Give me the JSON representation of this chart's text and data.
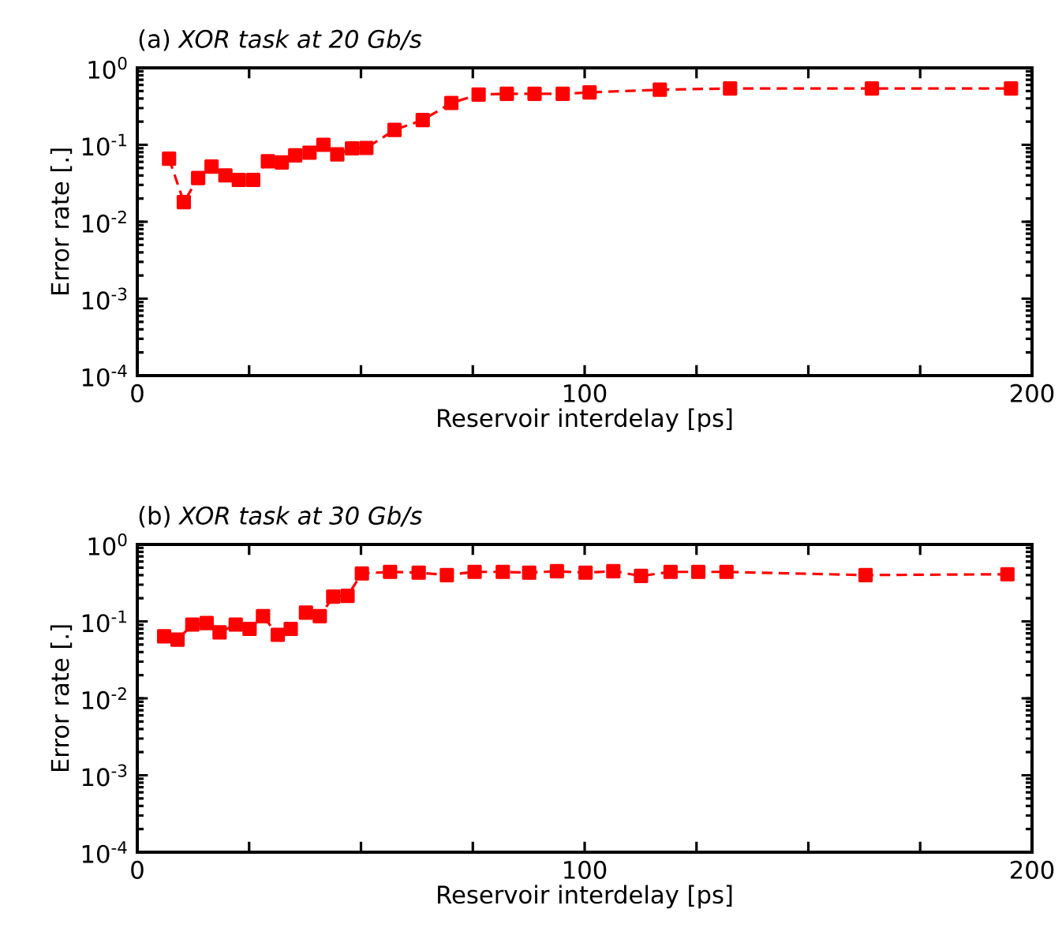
{
  "chart_data": [
    {
      "type": "line",
      "title": "(a) *XOR task at 20 Gb/s*",
      "xlabel": "Reservoir interdelay [ps]",
      "ylabel": "Error rate [.]",
      "log": "y",
      "marker": "square",
      "line_style": "dashed",
      "xlim": [
        0,
        200
      ],
      "ylim": [
        0.0001,
        1
      ],
      "xticks": [
        0,
        {
          "value": 25,
          "label": null
        },
        {
          "value": 50,
          "label": null
        },
        {
          "value": 75,
          "label": null
        },
        100,
        {
          "value": 125,
          "label": null
        },
        {
          "value": 150,
          "label": null
        },
        {
          "value": 175,
          "label": null
        },
        200
      ],
      "yticks": [
        {
          "value": 0.0001,
          "label": "10$^{-4}$"
        },
        {
          "value": 0.001,
          "label": "10$^{-3}$"
        },
        {
          "value": 0.01,
          "label": "10$^{-2}$"
        },
        {
          "value": 0.1,
          "label": "10$^{-1}$"
        },
        {
          "value": 1,
          "label": "10$^{0}$"
        }
      ],
      "series": [
        {
          "color": "#ff0000",
          "x": [
            7.1,
            10.4,
            13.6,
            16.6,
            19.7,
            22.7,
            25.9,
            29.2,
            32.3,
            35.3,
            38.5,
            41.6,
            44.7,
            48.0,
            51.2,
            57.5,
            63.8,
            70.2,
            76.3,
            82.6,
            88.8,
            95.1,
            101.1,
            116.8,
            132.5,
            164.2,
            195.3
          ],
          "values": [
            0.066,
            0.018,
            0.037,
            0.052,
            0.04,
            0.035,
            0.035,
            0.061,
            0.059,
            0.073,
            0.079,
            0.1,
            0.075,
            0.09,
            0.091,
            0.156,
            0.21,
            0.35,
            0.45,
            0.46,
            0.46,
            0.46,
            0.48,
            0.52,
            0.54,
            0.54,
            0.54
          ]
        }
      ]
    },
    {
      "type": "line",
      "title": "(b) *XOR task at 30 Gb/s*",
      "xlabel": "Reservoir interdelay [ps]",
      "ylabel": "Error rate [.]",
      "log": "y",
      "marker": "square",
      "line_style": "dashed",
      "xlim": [
        0,
        200
      ],
      "ylim": [
        0.0001,
        1
      ],
      "xticks": [
        0,
        {
          "value": 25,
          "label": null
        },
        {
          "value": 50,
          "label": null
        },
        {
          "value": 75,
          "label": null
        },
        100,
        {
          "value": 125,
          "label": null
        },
        {
          "value": 150,
          "label": null
        },
        {
          "value": 175,
          "label": null
        },
        200
      ],
      "yticks": [
        {
          "value": 0.0001,
          "label": "10$^{-4}$"
        },
        {
          "value": 0.001,
          "label": "10$^{-3}$"
        },
        {
          "value": 0.01,
          "label": "10$^{-2}$"
        },
        {
          "value": 0.1,
          "label": "10$^{-1}$"
        },
        {
          "value": 1,
          "label": "10$^{0}$"
        }
      ],
      "series": [
        {
          "color": "#ff0000",
          "x": [
            6.0,
            9.0,
            12.3,
            15.5,
            18.4,
            22.0,
            25.1,
            28.1,
            31.4,
            34.3,
            37.7,
            40.8,
            43.8,
            47.0,
            50.2,
            56.5,
            62.9,
            69.2,
            75.4,
            81.7,
            87.6,
            93.8,
            100.2,
            106.4,
            112.6,
            119.2,
            125.4,
            131.7,
            162.8,
            194.5
          ],
          "values": [
            0.064,
            0.058,
            0.091,
            0.095,
            0.072,
            0.091,
            0.08,
            0.117,
            0.067,
            0.08,
            0.13,
            0.117,
            0.21,
            0.215,
            0.42,
            0.44,
            0.43,
            0.4,
            0.44,
            0.44,
            0.43,
            0.45,
            0.43,
            0.45,
            0.39,
            0.44,
            0.44,
            0.44,
            0.4,
            0.41
          ]
        }
      ]
    }
  ]
}
